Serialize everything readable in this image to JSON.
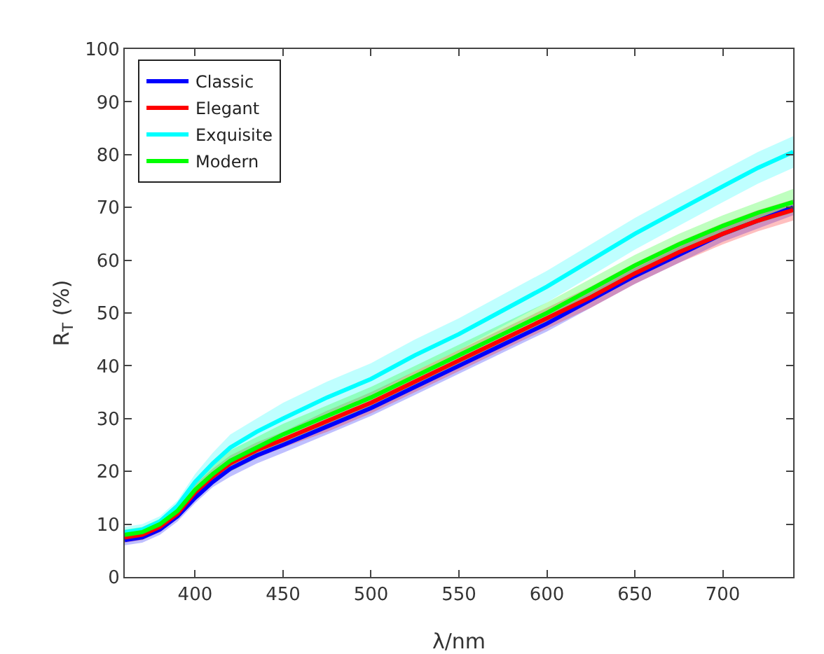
{
  "chart_data": {
    "type": "line",
    "xlabel": "λ/nm",
    "ylabel": "R$_{T}$ (%)",
    "x": [
      360,
      370,
      380,
      390,
      400,
      410,
      420,
      435,
      450,
      475,
      500,
      525,
      550,
      575,
      600,
      625,
      650,
      675,
      700,
      720,
      740
    ],
    "xlim": [
      360,
      740
    ],
    "xticks": [
      400,
      450,
      500,
      550,
      600,
      650,
      700
    ],
    "ylim": [
      0,
      100
    ],
    "yticks": [
      0,
      10,
      20,
      30,
      40,
      50,
      60,
      70,
      80,
      90,
      100
    ],
    "grid": false,
    "legend": "top left",
    "line_style": "solid",
    "marker": "none",
    "series": [
      {
        "name": "Classic",
        "color": "#0000ff",
        "values": [
          7,
          7.5,
          9,
          11.5,
          15,
          18,
          20.5,
          23,
          25,
          28.5,
          32,
          36,
          40,
          44,
          48,
          52.5,
          57,
          61,
          65,
          67.5,
          70
        ],
        "lower": [
          6,
          6.5,
          8,
          10.5,
          14,
          17,
          19,
          21.5,
          23.5,
          27,
          30.5,
          34.5,
          38.5,
          42.5,
          46.5,
          51,
          55.5,
          59.5,
          63.5,
          66,
          68.5
        ],
        "upper": [
          8,
          8.5,
          10,
          12.5,
          16,
          19,
          22,
          24.5,
          26.5,
          30,
          33.5,
          37.5,
          41.5,
          45.5,
          49.5,
          54,
          58.5,
          62.5,
          66.5,
          69,
          71.5
        ]
      },
      {
        "name": "Elegant",
        "color": "#ff0000",
        "values": [
          7.5,
          8,
          9.5,
          12,
          16,
          19,
          21.5,
          24,
          26,
          29.5,
          33,
          37,
          41,
          45,
          49,
          53,
          57.5,
          61.5,
          65,
          67.5,
          69.5
        ],
        "lower": [
          6.5,
          7,
          8.5,
          11,
          14.5,
          17.5,
          20,
          22.5,
          24.5,
          27.5,
          31,
          35,
          39,
          43,
          47,
          51,
          55.5,
          59.5,
          63,
          65.5,
          67.5
        ],
        "upper": [
          8.5,
          9,
          10.5,
          13,
          17.5,
          20.5,
          23,
          25.5,
          27.5,
          31.5,
          35,
          39,
          43,
          47,
          51,
          55,
          59.5,
          63.5,
          67,
          69.5,
          71.5
        ]
      },
      {
        "name": "Exquisite",
        "color": "#00ffff",
        "values": [
          8.5,
          9,
          10.5,
          13.5,
          18,
          21.5,
          24.5,
          27.5,
          30,
          34,
          37.5,
          42,
          46,
          50.5,
          55,
          60,
          65,
          69.5,
          74,
          77.5,
          80.5
        ],
        "lower": [
          7.5,
          8,
          9.5,
          12.5,
          16.5,
          19.5,
          22,
          25,
          27,
          31,
          34.5,
          39,
          43,
          47.5,
          52,
          57,
          62,
          66.5,
          71,
          74.5,
          77.5
        ],
        "upper": [
          9.5,
          10,
          11.5,
          14.5,
          19.5,
          23.5,
          27,
          30,
          33,
          37,
          40.5,
          45,
          49,
          53.5,
          58,
          63,
          68,
          72.5,
          77,
          80.5,
          83.5
        ]
      },
      {
        "name": "Modern",
        "color": "#00ff00",
        "values": [
          8,
          8.5,
          10,
          12.5,
          16.5,
          19.5,
          22,
          24.5,
          27,
          30.5,
          34,
          38,
          42,
          46,
          50,
          54.5,
          59,
          63,
          66.5,
          69,
          71
        ],
        "lower": [
          7,
          7.5,
          9,
          11.5,
          15,
          18,
          20,
          22.5,
          25,
          28.5,
          32,
          36,
          40,
          44,
          48,
          52.5,
          57,
          61,
          64.5,
          67,
          69
        ],
        "upper": [
          9,
          9.5,
          11,
          13.5,
          18,
          21,
          24,
          26.5,
          29,
          32.5,
          36,
          40,
          44,
          48,
          52,
          56.5,
          61,
          65,
          68.5,
          71,
          73.5
        ]
      }
    ]
  }
}
